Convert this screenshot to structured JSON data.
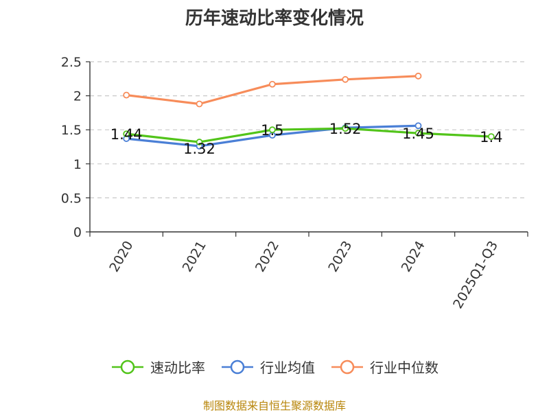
{
  "chart_data": {
    "type": "line",
    "title": "历年速动比率变化情况",
    "categories": [
      "2020",
      "2021",
      "2022",
      "2023",
      "2024",
      "2025Q1-Q3"
    ],
    "ylim": [
      0,
      2.5
    ],
    "yticks": [
      "0",
      "0.5",
      "1",
      "1.5",
      "2",
      "2.5"
    ],
    "grid": true,
    "legend_position": "bottom",
    "series": [
      {
        "name": "速动比率",
        "color": "#52c41a",
        "values": [
          1.44,
          1.32,
          1.5,
          1.52,
          1.45,
          1.4
        ],
        "labels": [
          "1.44",
          "1.32",
          "1.5",
          "1.52",
          "1.45",
          "1.4"
        ]
      },
      {
        "name": "行业均值",
        "color": "#4a7fd6",
        "values": [
          1.37,
          1.26,
          1.42,
          1.53,
          1.56,
          null
        ]
      },
      {
        "name": "行业中位数",
        "color": "#f78c5a",
        "values": [
          2.01,
          1.88,
          2.17,
          2.24,
          2.29,
          null
        ]
      }
    ]
  },
  "source": "制图数据来自恒生聚源数据库"
}
